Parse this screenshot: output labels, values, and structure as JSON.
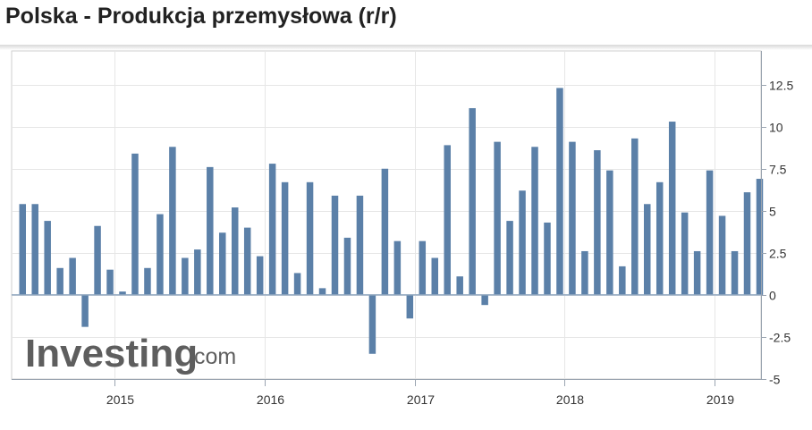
{
  "header": {
    "title": "Polska - Produkcja przemysłowa (r/r)"
  },
  "watermark": {
    "brand": "Investing",
    "suffix": ".com"
  },
  "colors": {
    "bar": "#5b80a8",
    "grid": "#e6e6e6",
    "axis": "#9aa4b0",
    "zero_line": "#8fa6bf"
  },
  "chart_data": {
    "type": "bar",
    "title": "Polska - Produkcja przemysłowa (r/r)",
    "xlabel": "",
    "ylabel": "",
    "ylim": [
      -5,
      14.5
    ],
    "y_ticks": [
      -5,
      -2.5,
      0,
      2.5,
      5,
      7.5,
      10,
      12.5
    ],
    "y_tick_labels": [
      "-5",
      "-2.5",
      "0",
      "2.5",
      "5",
      "7.5",
      "10",
      "12.5"
    ],
    "y_axis_side": "right",
    "grid": true,
    "x_tick_labels": [
      "2015",
      "2016",
      "2017",
      "2018",
      "2019"
    ],
    "categories": [
      "2014-05",
      "2014-06",
      "2014-07",
      "2014-08",
      "2014-09",
      "2014-10",
      "2014-11",
      "2014-12",
      "2015-01",
      "2015-02",
      "2015-03",
      "2015-04",
      "2015-05",
      "2015-06",
      "2015-07",
      "2015-08",
      "2015-09",
      "2015-10",
      "2015-11",
      "2015-12",
      "2016-01",
      "2016-02",
      "2016-03",
      "2016-04",
      "2016-05",
      "2016-06",
      "2016-07",
      "2016-08",
      "2016-09",
      "2016-10",
      "2016-11",
      "2016-12",
      "2017-01",
      "2017-02",
      "2017-03",
      "2017-04",
      "2017-05",
      "2017-06",
      "2017-07",
      "2017-08",
      "2017-09",
      "2017-10",
      "2017-11",
      "2017-12",
      "2018-01",
      "2018-02",
      "2018-03",
      "2018-04",
      "2018-05",
      "2018-06",
      "2018-07",
      "2018-08",
      "2018-09",
      "2018-10",
      "2018-11",
      "2018-12",
      "2019-01",
      "2019-02",
      "2019-03",
      "2019-04"
    ],
    "values": [
      5.4,
      5.4,
      4.4,
      1.6,
      2.2,
      -1.9,
      4.1,
      1.5,
      0.2,
      8.4,
      1.6,
      4.8,
      8.8,
      2.2,
      2.7,
      7.6,
      3.7,
      5.2,
      4.0,
      2.3,
      7.8,
      6.7,
      1.3,
      6.7,
      0.4,
      5.9,
      3.4,
      5.9,
      -3.5,
      7.5,
      3.2,
      -1.4,
      3.2,
      2.2,
      8.9,
      1.1,
      11.1,
      -0.6,
      9.1,
      4.4,
      6.2,
      8.8,
      4.3,
      12.3,
      9.1,
      2.6,
      8.6,
      7.4,
      1.7,
      9.3,
      5.4,
      6.7,
      10.3,
      4.9,
      2.6,
      7.4,
      4.7,
      2.6,
      6.1,
      6.9
    ]
  }
}
